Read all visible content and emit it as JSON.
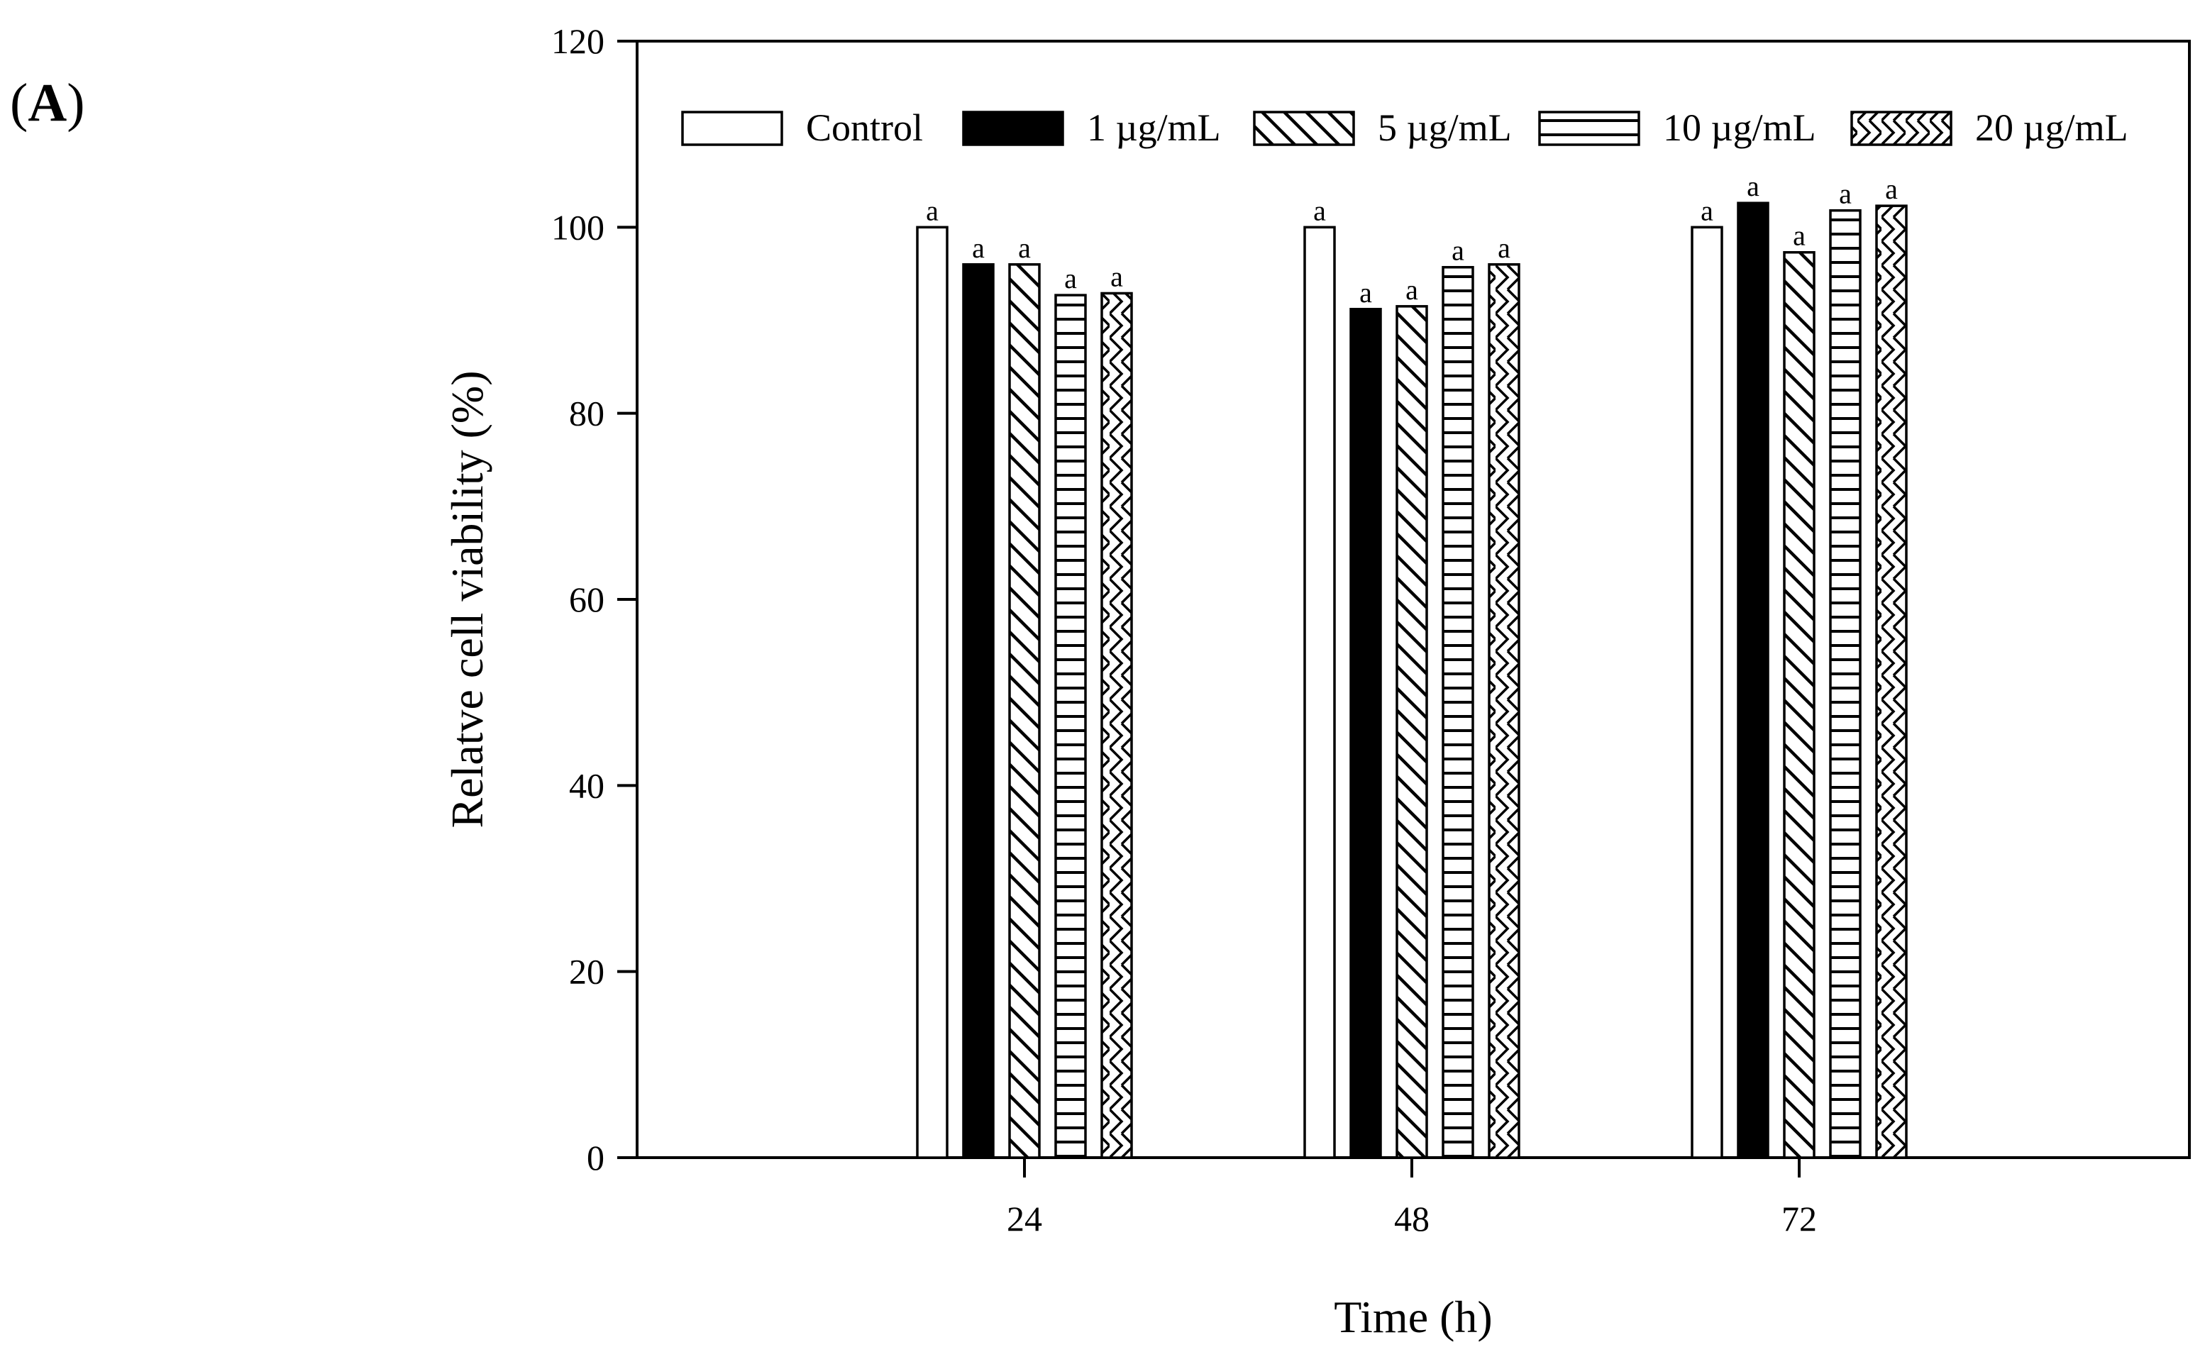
{
  "panel_label": {
    "open": "(",
    "letter": "A",
    "close": ")"
  },
  "chart_data": {
    "type": "bar",
    "title": "",
    "xlabel": "Time (h)",
    "ylabel": "Relatve cell viability (%)",
    "ylim": [
      0,
      120
    ],
    "yticks": [
      0,
      20,
      40,
      60,
      80,
      100,
      120
    ],
    "categories": [
      "24",
      "48",
      "72"
    ],
    "legend_position": "top",
    "series": [
      {
        "name": "Control",
        "pattern": "white",
        "values": [
          100.0,
          100.0,
          100.0
        ],
        "labels": [
          "a",
          "a",
          "a"
        ]
      },
      {
        "name": "1 µg/mL",
        "pattern": "black",
        "values": [
          96.0,
          91.2,
          102.6
        ],
        "labels": [
          "a",
          "a",
          "a"
        ]
      },
      {
        "name": "5 µg/mL",
        "pattern": "diagonal",
        "values": [
          96.0,
          91.5,
          97.3
        ],
        "labels": [
          "a",
          "a",
          "a"
        ]
      },
      {
        "name": "10 µg/mL",
        "pattern": "horizontal",
        "values": [
          92.7,
          95.7,
          101.8
        ],
        "labels": [
          "a",
          "a",
          "a"
        ]
      },
      {
        "name": "20 µg/mL",
        "pattern": "zigzag",
        "values": [
          92.9,
          96.0,
          102.3
        ],
        "labels": [
          "a",
          "a",
          "a"
        ]
      }
    ]
  }
}
